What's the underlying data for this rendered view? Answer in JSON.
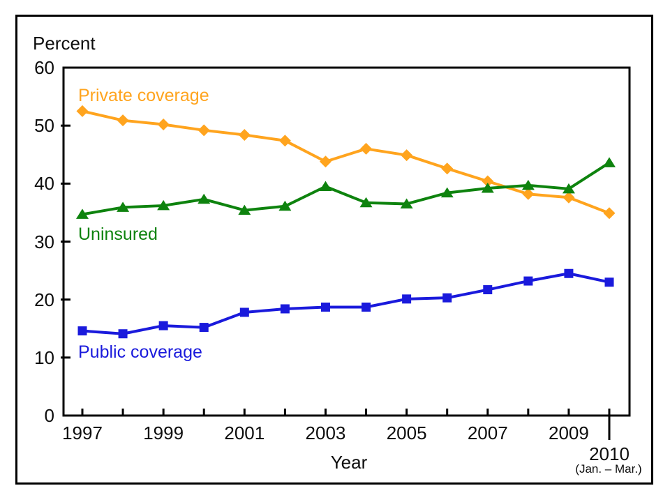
{
  "figure": {
    "y_axis_title": "Percent",
    "x_axis_title": "Year",
    "final_tick_label": "2010",
    "final_tick_sublabel": "(Jan. – Mar.)"
  },
  "chart_data": {
    "type": "line",
    "x": [
      1997,
      1998,
      1999,
      2000,
      2001,
      2002,
      2003,
      2004,
      2005,
      2006,
      2007,
      2008,
      2009,
      2010
    ],
    "x_tick_labels_shown": [
      "1997",
      "1999",
      "2001",
      "2003",
      "2005",
      "2007",
      "2009"
    ],
    "x_final_tick": {
      "year": 2010,
      "label": "2010",
      "sublabel": "(Jan. – Mar.)"
    },
    "xlabel": "Year",
    "ylabel": "Percent",
    "ylim": [
      0,
      60
    ],
    "yticks": [
      0,
      10,
      20,
      30,
      40,
      50,
      60
    ],
    "grid": false,
    "legend_position": "inline-labels",
    "axis_color": "#000000",
    "series": [
      {
        "name": "Private coverage",
        "color": "#FFA41E",
        "marker": "diamond",
        "values": [
          52.5,
          50.9,
          50.2,
          49.2,
          48.4,
          47.4,
          43.8,
          46.0,
          44.9,
          42.6,
          40.4,
          38.2,
          37.6,
          34.9
        ]
      },
      {
        "name": "Uninsured",
        "color": "#0E830E",
        "marker": "triangle",
        "values": [
          34.7,
          35.9,
          36.2,
          37.3,
          35.4,
          36.1,
          39.5,
          36.7,
          36.5,
          38.4,
          39.2,
          39.7,
          39.1,
          43.6
        ]
      },
      {
        "name": "Public coverage",
        "color": "#1A1ADC",
        "marker": "square",
        "values": [
          14.6,
          14.1,
          15.5,
          15.2,
          17.8,
          18.4,
          18.7,
          18.7,
          20.1,
          20.3,
          21.7,
          23.2,
          24.5,
          23.0
        ]
      }
    ]
  }
}
